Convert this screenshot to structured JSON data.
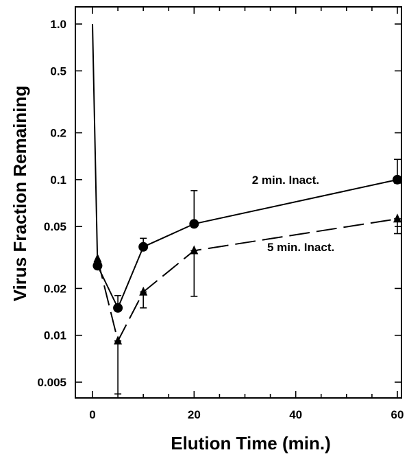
{
  "chart_data": {
    "type": "line",
    "title": "",
    "xlabel": "Elution Time (min.)",
    "ylabel": "Virus Fraction Remaining",
    "x_ticks": [
      0,
      20,
      40,
      60
    ],
    "x_tick_labels": [
      "0",
      "20",
      "40",
      "60"
    ],
    "y_scale": "log",
    "y_ticks": [
      1.0,
      0.5,
      0.2,
      0.1,
      0.05,
      0.02,
      0.01,
      0.005
    ],
    "y_tick_labels": [
      "1.0",
      "0.5",
      "0.2",
      "0.1",
      "0.05",
      "0.02",
      "0.01",
      "0.005"
    ],
    "grid": false,
    "series": [
      {
        "name": "2 min. Inact.",
        "marker": "circle",
        "line_style": "solid",
        "points": [
          {
            "x": 0,
            "y": 1.0
          },
          {
            "x": 1,
            "y": 0.028
          },
          {
            "x": 5,
            "y": 0.015,
            "err_low": 0.015,
            "err_high": 0.018
          },
          {
            "x": 10,
            "y": 0.037,
            "err_low": 0.037,
            "err_high": 0.042
          },
          {
            "x": 20,
            "y": 0.052,
            "err_low": 0.052,
            "err_high": 0.085
          },
          {
            "x": 60,
            "y": 0.1,
            "err_low": 0.095,
            "err_high": 0.135
          }
        ]
      },
      {
        "name": "5 min. Inact.",
        "marker": "triangle",
        "line_style": "dashed",
        "points": [
          {
            "x": 1,
            "y": 0.031
          },
          {
            "x": 5,
            "y": 0.0092,
            "err_low": 0.0042,
            "err_high": 0.0092
          },
          {
            "x": 10,
            "y": 0.019,
            "err_low": 0.015,
            "err_high": 0.019
          },
          {
            "x": 20,
            "y": 0.035,
            "err_low": 0.0178,
            "err_high": 0.035
          },
          {
            "x": 60,
            "y": 0.056,
            "err_low": 0.045,
            "err_high": 0.056
          }
        ]
      }
    ],
    "annotations": [
      {
        "text": "2 min. Inact.",
        "x": 38,
        "y": 0.1
      },
      {
        "text": "5 min. Inact.",
        "x": 41,
        "y": 0.037
      }
    ]
  }
}
